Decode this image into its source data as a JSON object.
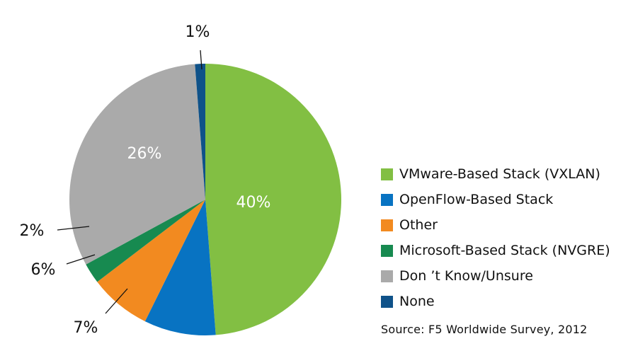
{
  "chart_data": {
    "type": "pie",
    "series": [
      {
        "name": "VMware-Based Stack (VXLAN)",
        "value": 40,
        "label": "40%",
        "color": "#82bf43"
      },
      {
        "name": "OpenFlow-Based Stack",
        "value": 7,
        "label": "7%",
        "color": "#0873c2"
      },
      {
        "name": "Other",
        "value": 6,
        "label": "6%",
        "color": "#f28a20"
      },
      {
        "name": "Microsoft-Based Stack (NVGRE)",
        "value": 2,
        "label": "2%",
        "color": "#178a50"
      },
      {
        "name": "Don’t Know/Unsure",
        "value": 26,
        "label": "26%",
        "color": "#aaaaaa"
      },
      {
        "name": "None",
        "value": 1,
        "label": "1%",
        "color": "#0f5289"
      }
    ],
    "legend_position": "right"
  },
  "legend": {
    "items": [
      {
        "label": "VMware-Based Stack (VXLAN)",
        "color": "#82bf43"
      },
      {
        "label": "OpenFlow-Based Stack",
        "color": "#0873c2"
      },
      {
        "label": "Other",
        "color": "#f28a20"
      },
      {
        "label": "Microsoft-Based Stack (NVGRE)",
        "color": "#178a50"
      },
      {
        "label": "Don ’t Know/Unsure",
        "color": "#aaaaaa"
      },
      {
        "label": "None",
        "color": "#0f5289"
      }
    ]
  },
  "source": "Source: F5  Worldwide Survey, 2012"
}
